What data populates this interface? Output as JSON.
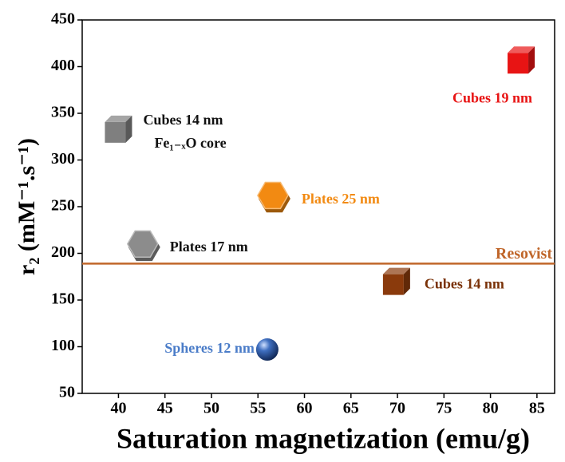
{
  "chart_data": {
    "type": "scatter",
    "x_label": "Saturation magnetization (emu/g)",
    "y_label": "r₂ (mM⁻¹.s⁻¹)",
    "xlim": [
      36.1,
      86.9
    ],
    "ylim": [
      50,
      450
    ],
    "xticks": [
      40,
      45,
      50,
      55,
      60,
      65,
      70,
      75,
      80,
      85
    ],
    "yticks": [
      50,
      100,
      150,
      200,
      250,
      300,
      350,
      400,
      450
    ],
    "series": [
      {
        "name": "Cubes 19 nm",
        "marker": "cube",
        "color": "#e81414",
        "label_color": "#e81414",
        "x": [
          83.3
        ],
        "values": [
          407
        ]
      },
      {
        "name": "Cubes 14 nm",
        "note": "Fe₁₋ₓO core",
        "marker": "cube",
        "color": "#7f7f7f",
        "label_color": "#111111",
        "x": [
          40
        ],
        "values": [
          333
        ]
      },
      {
        "name": "Plates 25 nm",
        "marker": "plate",
        "color": "#f28a12",
        "label_color": "#f28a12",
        "x": [
          56.6
        ],
        "values": [
          262
        ]
      },
      {
        "name": "Plates 17 nm",
        "marker": "plate",
        "color": "#8c8c8c",
        "label_color": "#111111",
        "x": [
          42.6
        ],
        "values": [
          210
        ]
      },
      {
        "name": "Cubes 14 nm",
        "marker": "cube",
        "color": "#8a3a0c",
        "label_color": "#7a3208",
        "x": [
          69.9
        ],
        "values": [
          170
        ]
      },
      {
        "name": "Spheres 12 nm",
        "marker": "sphere",
        "color": "#2f5fb0",
        "label_color": "#4a7cc8",
        "x": [
          56
        ],
        "values": [
          97
        ]
      }
    ],
    "reference_lines": [
      {
        "label": "Resovist",
        "value": 189,
        "color": "#c0662a"
      }
    ]
  }
}
